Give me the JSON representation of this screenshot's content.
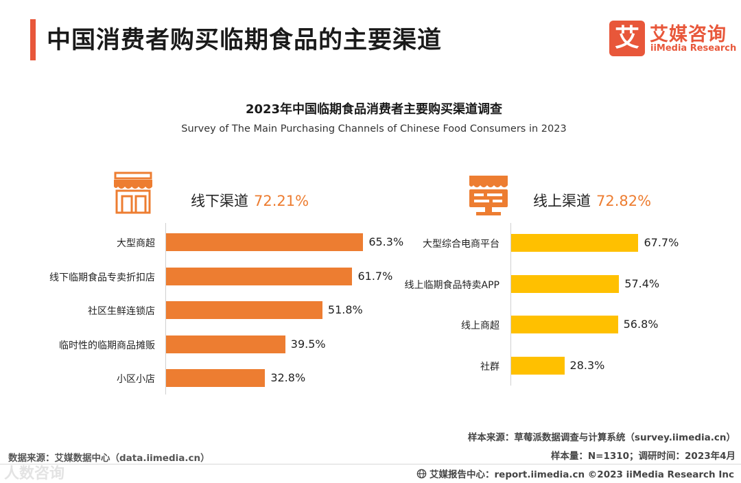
{
  "header": {
    "title": "中国消费者购买临期食品的主要渠道",
    "logo_mark": "艾",
    "logo_cn": "艾媒咨询",
    "logo_en": "iiMedia Research"
  },
  "chart_data": [
    {
      "type": "bar",
      "orientation": "horizontal",
      "title": "2023年中国临期食品消费者主要购买渠道调查",
      "subtitle": "Survey of The Main Purchasing Channels of Chinese Food Consumers in 2023",
      "panel_label": "线下渠道",
      "panel_value": "72.21%",
      "unit": "%",
      "color": "#ed7d31",
      "xlim": [
        0,
        100
      ],
      "categories": [
        "大型商超",
        "线下临期食品专卖折扣店",
        "社区生鲜连锁店",
        "临时性的临期商品摊贩",
        "小区小店"
      ],
      "values": [
        65.3,
        61.7,
        51.8,
        39.5,
        32.8
      ]
    },
    {
      "type": "bar",
      "orientation": "horizontal",
      "panel_label": "线上渠道",
      "panel_value": "72.82%",
      "unit": "%",
      "color": "#ffc000",
      "xlim": [
        0,
        100
      ],
      "categories": [
        "大型综合电商平台",
        "线上临期食品特卖APP",
        "线上商超",
        "社群"
      ],
      "values": [
        67.7,
        57.4,
        56.8,
        28.3
      ]
    }
  ],
  "footer": {
    "data_source": "数据来源：艾媒数据中心（data.iimedia.cn）",
    "sample_source": "样本来源：草莓派数据调查与计算系统（survey.iimedia.cn）",
    "sample_size": "样本量：N=1310；调研时间：2023年4月",
    "report_center": "艾媒报告中心：report.iimedia.cn  ©2023  iiMedia Research  Inc"
  },
  "watermark": "人数咨询"
}
